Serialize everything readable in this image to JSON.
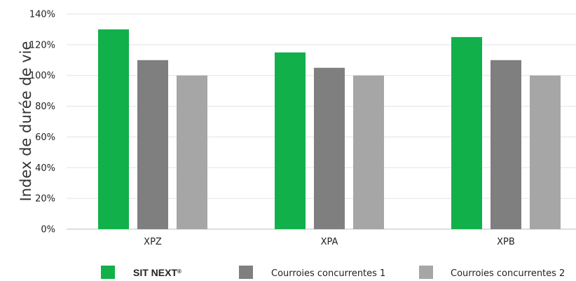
{
  "chart_data": {
    "type": "bar",
    "ylabel": "Index de durée de vie",
    "categories": [
      "XPZ",
      "XPA",
      "XPB"
    ],
    "ylim": [
      0,
      140
    ],
    "y_ticks": [
      0,
      20,
      40,
      60,
      80,
      100,
      120,
      140
    ],
    "y_tick_labels": [
      "0%",
      "20%",
      "40%",
      "60%",
      "80%",
      "100%",
      "120%",
      "140%"
    ],
    "grid": "horizontal",
    "legend_position": "bottom",
    "series": [
      {
        "name": "SIT NEXT",
        "name_suffix": "®",
        "color": "#12b04a",
        "values": [
          130,
          115,
          125
        ]
      },
      {
        "name": "Courroies concurrentes 1",
        "color": "#7f7f7f",
        "values": [
          110,
          105,
          110
        ]
      },
      {
        "name": "Courroies concurrentes 2",
        "color": "#a6a6a6",
        "values": [
          100,
          100,
          100
        ]
      }
    ]
  }
}
